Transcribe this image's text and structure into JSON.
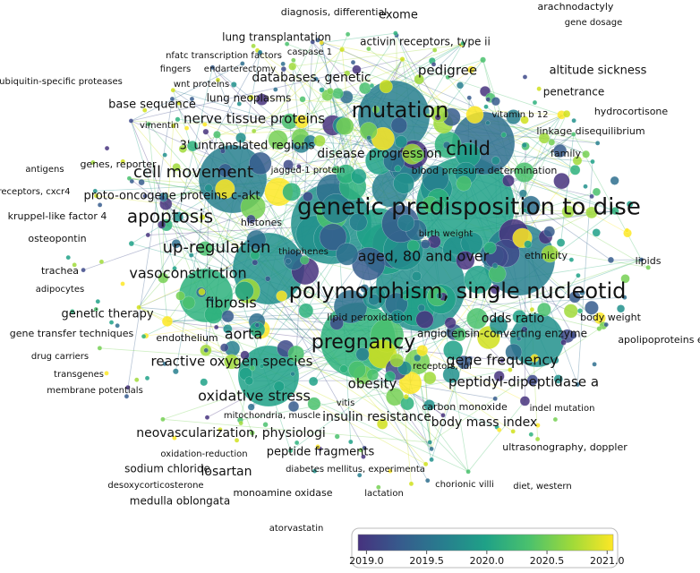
{
  "nodes": [
    {
      "label": "diagnosis, differential"
    },
    {
      "label": "exome"
    },
    {
      "label": "arachnodactyly"
    },
    {
      "label": "gene dosage"
    },
    {
      "label": "lung transplantation"
    },
    {
      "label": "caspase 1"
    },
    {
      "label": "activin receptors, type ii"
    },
    {
      "label": "nfatc transcription factors"
    },
    {
      "label": "fingers"
    },
    {
      "label": "endarterectomy"
    },
    {
      "label": "ubiquitin-specific proteases"
    },
    {
      "label": "wnt proteins"
    },
    {
      "label": "databases, genetic"
    },
    {
      "label": "pedigree"
    },
    {
      "label": "altitude sickness"
    },
    {
      "label": "penetrance"
    },
    {
      "label": "lung neoplasms"
    },
    {
      "label": "base sequence"
    },
    {
      "label": "mutation"
    },
    {
      "label": "hydrocortisone"
    },
    {
      "label": "vitamin b 12"
    },
    {
      "label": "vimentin"
    },
    {
      "label": "nerve tissue proteins"
    },
    {
      "label": "linkage disequilibrium"
    },
    {
      "label": "3' untranslated regions"
    },
    {
      "label": "child"
    },
    {
      "label": "family"
    },
    {
      "label": "disease progression"
    },
    {
      "label": "antigens"
    },
    {
      "label": "genes, reporter"
    },
    {
      "label": "cell movement"
    },
    {
      "label": "jagged-1 protein"
    },
    {
      "label": "blood pressure determination"
    },
    {
      "label": "receptors, cxcr4"
    },
    {
      "label": "proto-oncogene proteins c-akt"
    },
    {
      "label": "genetic predisposition to dise"
    },
    {
      "label": "kruppel-like factor 4"
    },
    {
      "label": "apoptosis"
    },
    {
      "label": "histones"
    },
    {
      "label": "birth weight"
    },
    {
      "label": "osteopontin"
    },
    {
      "label": "up-regulation"
    },
    {
      "label": "thiophenes"
    },
    {
      "label": "aged, 80 and over"
    },
    {
      "label": "ethnicity"
    },
    {
      "label": "lipids"
    },
    {
      "label": "trachea"
    },
    {
      "label": "vasoconstriction"
    },
    {
      "label": "polymorphism, single nucleotid"
    },
    {
      "label": "adipocytes"
    },
    {
      "label": "fibrosis"
    },
    {
      "label": "lipid peroxidation"
    },
    {
      "label": "odds ratio"
    },
    {
      "label": "body weight"
    },
    {
      "label": "genetic therapy"
    },
    {
      "label": "aorta"
    },
    {
      "label": "pregnancy"
    },
    {
      "label": "endothelium"
    },
    {
      "label": "gene transfer techniques"
    },
    {
      "label": "angiotensin-converting enzyme"
    },
    {
      "label": "apolipoproteins e"
    },
    {
      "label": "drug carriers"
    },
    {
      "label": "reactive oxygen species"
    },
    {
      "label": "gene frequency"
    },
    {
      "label": "transgenes"
    },
    {
      "label": "receptors, ldl"
    },
    {
      "label": "peptidyl-dipeptidase a"
    },
    {
      "label": "membrane potentials"
    },
    {
      "label": "obesity"
    },
    {
      "label": "oxidative stress"
    },
    {
      "label": "carbon monoxide"
    },
    {
      "label": "indel mutation"
    },
    {
      "label": "vitis"
    },
    {
      "label": "mitochondria, muscle"
    },
    {
      "label": "insulin resistance"
    },
    {
      "label": "body mass index"
    },
    {
      "label": "neovascularization, physiologi"
    },
    {
      "label": "oxidation-reduction"
    },
    {
      "label": "peptide fragments"
    },
    {
      "label": "ultrasonography, doppler"
    },
    {
      "label": "sodium chloride"
    },
    {
      "label": "losartan"
    },
    {
      "label": "diabetes mellitus, experimenta"
    },
    {
      "label": "desoxycorticosterone"
    },
    {
      "label": "chorionic villi"
    },
    {
      "label": "diet, western"
    },
    {
      "label": "monoamine oxidase"
    },
    {
      "label": "lactation"
    },
    {
      "label": "medulla oblongata"
    },
    {
      "label": "atorvastatin"
    }
  ],
  "color_scale": {
    "lim": [
      2018.93,
      2021.05
    ],
    "ticks": [
      {
        "value": 2019,
        "label": "2019.0"
      },
      {
        "value": 2019.5,
        "label": "2019.5"
      },
      {
        "value": 2020,
        "label": "2020.0"
      },
      {
        "value": 2020.5,
        "label": "2020.5"
      },
      {
        "value": 2021,
        "label": "2021.0"
      }
    ]
  }
}
